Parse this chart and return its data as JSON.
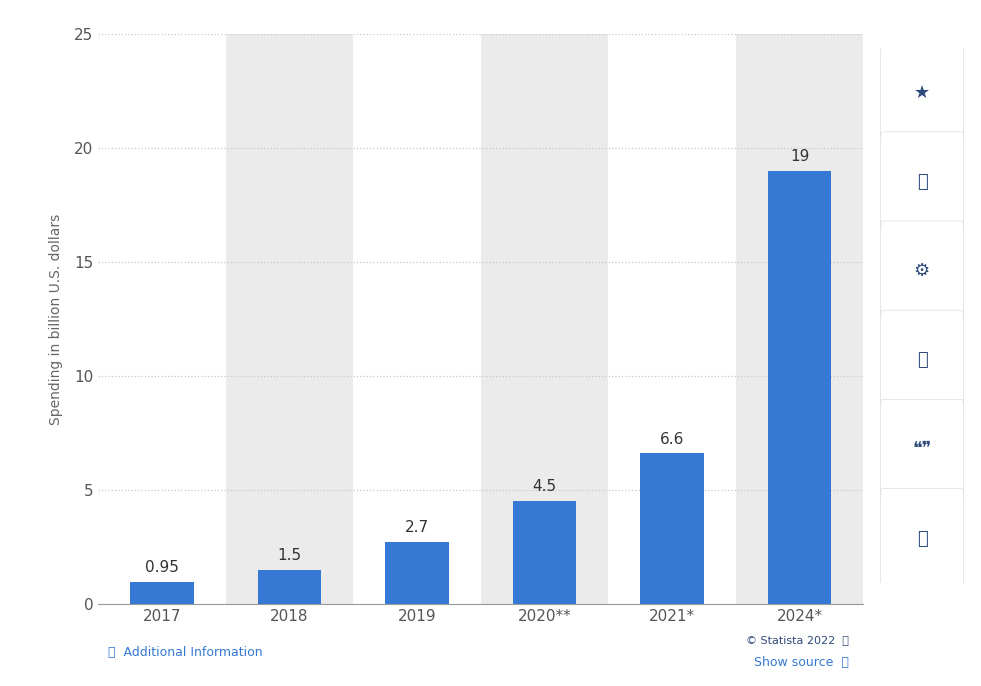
{
  "categories": [
    "2017",
    "2018",
    "2019",
    "2020**",
    "2021*",
    "2024*"
  ],
  "values": [
    0.95,
    1.5,
    2.7,
    4.5,
    6.6,
    19
  ],
  "bar_color": "#3579d5",
  "ylabel": "Spending in billion U.S. dollars",
  "ylim": [
    0,
    25
  ],
  "yticks": [
    0,
    5,
    10,
    15,
    20,
    25
  ],
  "grid_color": "#c8c8c8",
  "background_color": "#ffffff",
  "plot_bg_color": "#ffffff",
  "col_shade_color": "#ebebeb",
  "shaded_columns": [
    1,
    3,
    5
  ],
  "label_fontsize": 11,
  "tick_fontsize": 11,
  "ylabel_fontsize": 10,
  "annotation_fontsize": 11,
  "footer_text": "© Statista 2022",
  "additional_text": "Additional Information",
  "show_source_text": "Show source"
}
